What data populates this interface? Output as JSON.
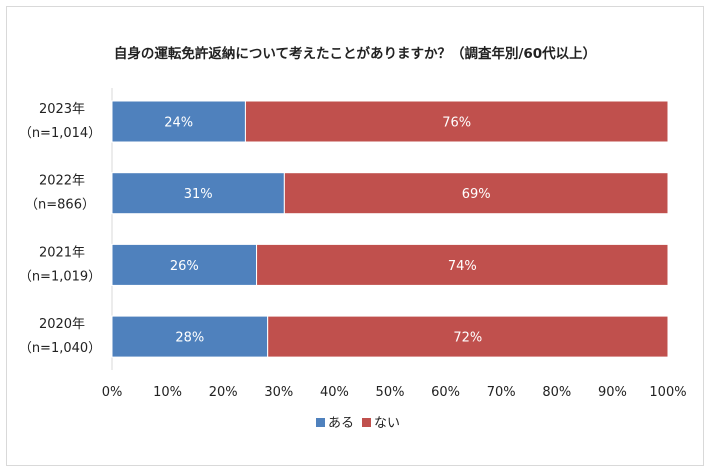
{
  "chart_data": {
    "type": "bar",
    "orientation": "horizontal",
    "stacked": true,
    "title": "自身の運転免許返納について考えたことがありますか？（調査年別/60代以上）",
    "categories": [
      {
        "year": "2023年",
        "n": "（n=1,014）"
      },
      {
        "year": "2022年",
        "n": "（n=866）"
      },
      {
        "year": "2021年",
        "n": "（n=1,019）"
      },
      {
        "year": "2020年",
        "n": "（n=1,040）"
      }
    ],
    "series": [
      {
        "name": "ある",
        "values": [
          24,
          31,
          26,
          28
        ],
        "color": "#4f81bd"
      },
      {
        "name": "ない",
        "values": [
          76,
          69,
          74,
          72
        ],
        "color": "#c0504d"
      }
    ],
    "xlim": [
      0,
      100
    ],
    "xticks": [
      "0%",
      "10%",
      "20%",
      "30%",
      "40%",
      "50%",
      "60%",
      "70%",
      "80%",
      "90%",
      "100%"
    ],
    "grid": false,
    "legend": "bottom"
  }
}
